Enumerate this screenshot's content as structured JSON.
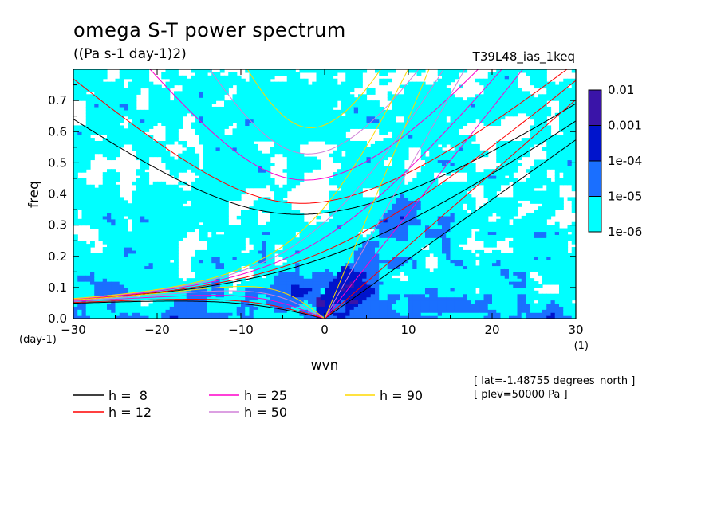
{
  "chart_data": {
    "type": "heatmap",
    "title": "omega S-T power spectrum",
    "subtitle": "((Pa s-1 day-1)2)",
    "experiment": "T39L48_ias_1keq",
    "xlabel": "wvn",
    "ylabel": "freq",
    "x_unit": "(1)",
    "y_unit": "(day-1)",
    "xlim": [
      -30,
      30
    ],
    "ylim": [
      0,
      0.8
    ],
    "xticks": [
      -30,
      -20,
      -10,
      0,
      10,
      20,
      30
    ],
    "xtick_labels": [
      "−30",
      "−20",
      "−10",
      "0",
      "10",
      "20",
      "30"
    ],
    "yticks": [
      0.0,
      0.1,
      0.2,
      0.3,
      0.4,
      0.5,
      0.6,
      0.7
    ],
    "ytick_labels": [
      "0.0",
      "0.1",
      "0.2",
      "0.3",
      "0.4",
      "0.5",
      "0.6",
      "0.7"
    ],
    "colorbar": {
      "levels": [
        "1e-06",
        "1e-05",
        "1e-04",
        "0.001",
        "0.01"
      ],
      "colors": [
        "#00ffff",
        "#1a6fff",
        "#0014cc",
        "#3a14a8"
      ]
    },
    "dispersion_curves": [
      {
        "label": "h =  8",
        "h": 8,
        "color": "#000000"
      },
      {
        "label": "h = 12",
        "h": 12,
        "color": "#ff0000"
      },
      {
        "label": "h = 25",
        "h": 25,
        "color": "#ff00cc"
      },
      {
        "label": "h = 50",
        "h": 50,
        "color": "#d080d8"
      },
      {
        "label": "h = 90",
        "h": 90,
        "color": "#ffd800"
      }
    ],
    "annotations": [
      "[ lat=-1.48755 degrees_north ]",
      "[ plev=50000 Pa ]"
    ]
  }
}
